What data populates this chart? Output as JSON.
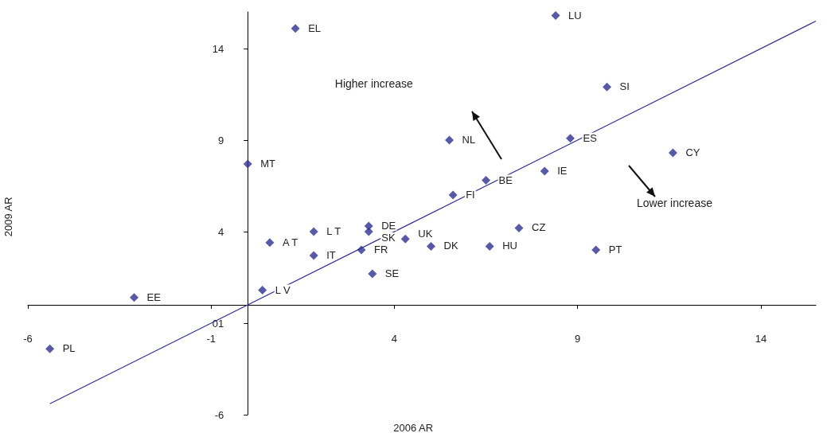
{
  "chart_data": {
    "type": "scatter",
    "xlabel": "2006 AR",
    "ylabel": "2009 AR",
    "xlim": [
      -6,
      15.5
    ],
    "ylim": [
      -6,
      16
    ],
    "xticks": [
      -6,
      -1,
      4,
      9,
      14
    ],
    "yticks": [
      -6,
      {
        "value": -1,
        "label": "01"
      },
      4,
      9,
      14
    ],
    "marker": "diamond",
    "series": [
      {
        "type": "scatter",
        "color": "#2e3192",
        "x": [
          -5.4,
          -3.1,
          0.0,
          0.4,
          0.6,
          1.8,
          1.8,
          1.3,
          3.1,
          3.3,
          3.3,
          3.4,
          4.3,
          5.0,
          5.6,
          5.5,
          6.5,
          6.6,
          7.4,
          8.1,
          8.4,
          8.8,
          9.8,
          9.5,
          11.6
        ],
        "values": [
          -2.4,
          0.4,
          7.7,
          0.8,
          3.4,
          4.0,
          2.7,
          15.1,
          3.0,
          4.3,
          4.0,
          1.7,
          3.6,
          3.2,
          6.0,
          9.0,
          6.8,
          3.2,
          4.2,
          7.3,
          15.8,
          9.1,
          11.9,
          3.0,
          8.3
        ]
      },
      {
        "type": "line",
        "color": "#2e3192",
        "line_style": "solid",
        "marker": "none",
        "x": [
          -5.4,
          15.5
        ],
        "values": [
          -5.4,
          15.5
        ]
      }
    ],
    "annotations": [
      {
        "text": "PL",
        "x": -5.4,
        "y": -2.4
      },
      {
        "text": "EE",
        "x": -3.1,
        "y": 0.4
      },
      {
        "text": "MT",
        "x": 0.0,
        "y": 7.7
      },
      {
        "text": "L V",
        "x": 0.4,
        "y": 0.8
      },
      {
        "text": "A T",
        "x": 0.6,
        "y": 3.4
      },
      {
        "text": "L T",
        "x": 1.8,
        "y": 4.0
      },
      {
        "text": "IT",
        "x": 1.8,
        "y": 2.7
      },
      {
        "text": "EL",
        "x": 1.3,
        "y": 15.1
      },
      {
        "text": "FR",
        "x": 3.1,
        "y": 3.0
      },
      {
        "text": "DE",
        "x": 3.3,
        "y": 4.3
      },
      {
        "text": "SK",
        "x": 3.3,
        "y": 4.0
      },
      {
        "text": "SE",
        "x": 3.4,
        "y": 1.7
      },
      {
        "text": "UK",
        "x": 4.3,
        "y": 3.6
      },
      {
        "text": "DK",
        "x": 5.0,
        "y": 3.2
      },
      {
        "text": "FI",
        "x": 5.6,
        "y": 6.0
      },
      {
        "text": "NL",
        "x": 5.5,
        "y": 9.0
      },
      {
        "text": "BE",
        "x": 6.5,
        "y": 6.8
      },
      {
        "text": "HU",
        "x": 6.6,
        "y": 3.2
      },
      {
        "text": "CZ",
        "x": 7.4,
        "y": 4.2
      },
      {
        "text": "IE",
        "x": 8.1,
        "y": 7.3
      },
      {
        "text": "LU",
        "x": 8.4,
        "y": 15.8
      },
      {
        "text": "ES",
        "x": 8.8,
        "y": 9.1
      },
      {
        "text": "SI",
        "x": 9.8,
        "y": 11.9
      },
      {
        "text": "PT",
        "x": 9.5,
        "y": 3.0
      },
      {
        "text": "CY",
        "x": 11.6,
        "y": 8.3
      },
      "Higher increase",
      "Lower increase"
    ]
  }
}
